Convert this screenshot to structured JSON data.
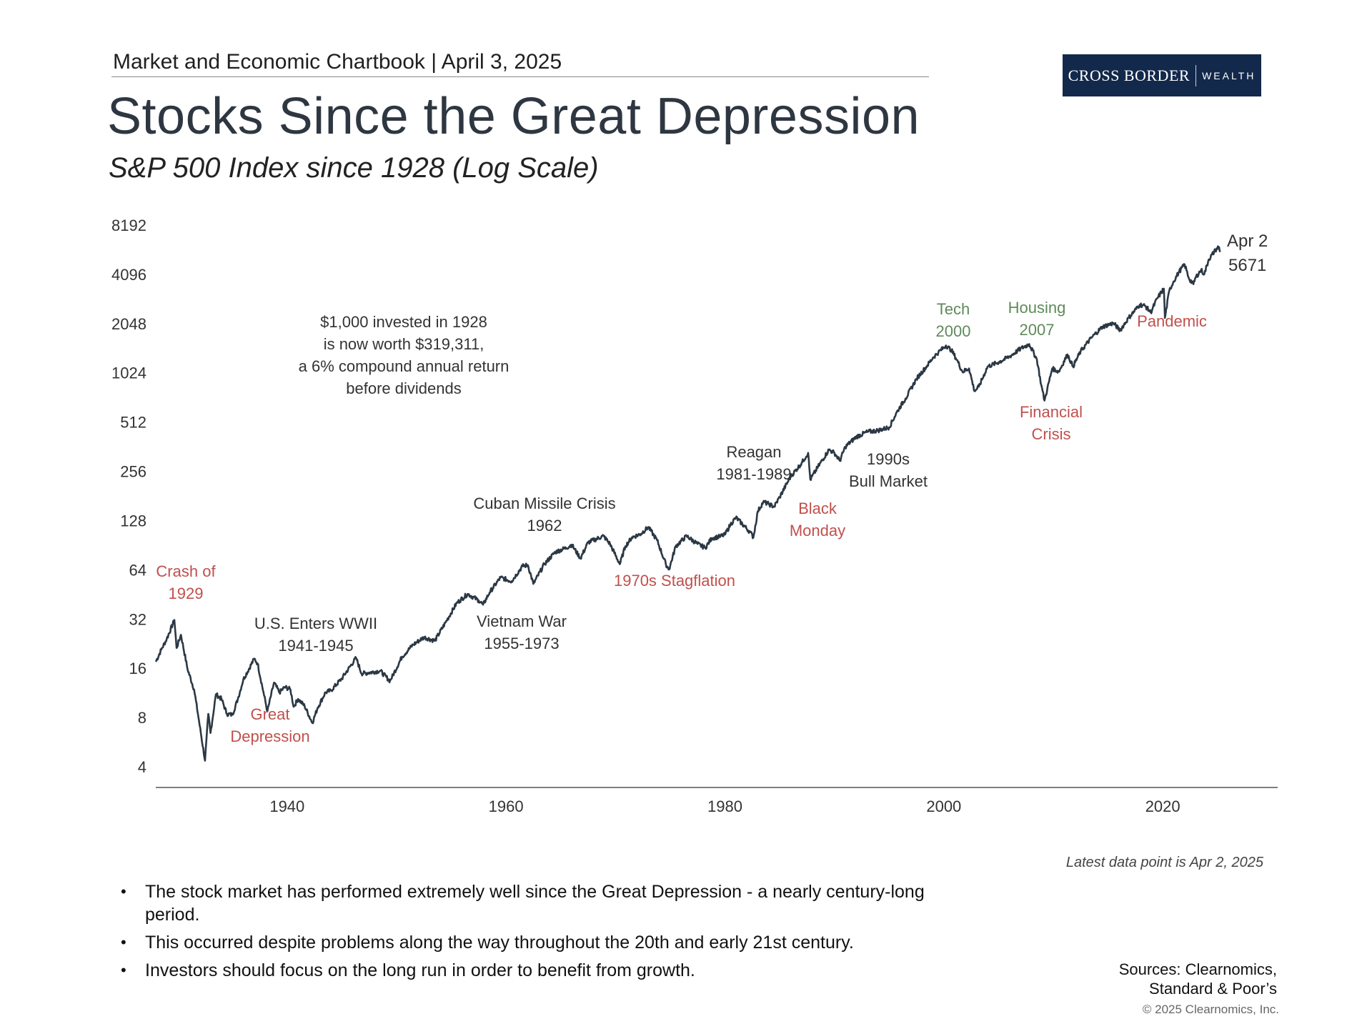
{
  "header": {
    "chartbook": "Market and Economic Chartbook | April 3, 2025",
    "title": "Stocks Since the Great Depression",
    "subtitle": "S&P 500 Index since 1928 (Log Scale)"
  },
  "logo": {
    "primary": "CROSS BORDER",
    "secondary": "WEALTH",
    "bg_color": "#13294b"
  },
  "colors": {
    "line": "#2b3844",
    "red_annotation": "#c0504d",
    "green_annotation": "#5e8a5a",
    "dark_annotation": "#333333"
  },
  "chart_data": {
    "type": "line",
    "title": "S&P 500 Index since 1928 (Log Scale)",
    "xlabel": "",
    "ylabel": "",
    "y_scale": "log2",
    "ylim": [
      4,
      8192
    ],
    "xlim": [
      1928,
      2030.5
    ],
    "y_ticks": [
      4,
      8,
      16,
      32,
      64,
      128,
      256,
      512,
      1024,
      2048,
      4096,
      8192
    ],
    "x_ticks": [
      1940,
      1960,
      1980,
      2000,
      2020
    ],
    "grid": false,
    "series": [
      {
        "name": "S&P 500",
        "points": [
          [
            1928.0,
            17.7
          ],
          [
            1928.5,
            21
          ],
          [
            1929.0,
            24.4
          ],
          [
            1929.7,
            31.9
          ],
          [
            1929.9,
            21.5
          ],
          [
            1930.3,
            25.9
          ],
          [
            1930.9,
            16
          ],
          [
            1931.5,
            12
          ],
          [
            1931.9,
            8.1
          ],
          [
            1932.5,
            4.4
          ],
          [
            1932.8,
            8.5
          ],
          [
            1933.0,
            6.5
          ],
          [
            1933.5,
            11.2
          ],
          [
            1934.0,
            10.5
          ],
          [
            1934.5,
            8.5
          ],
          [
            1935.0,
            8.4
          ],
          [
            1935.5,
            10.5
          ],
          [
            1936.0,
            13.8
          ],
          [
            1937.0,
            18.5
          ],
          [
            1937.3,
            17.3
          ],
          [
            1937.9,
            11
          ],
          [
            1938.2,
            8.8
          ],
          [
            1938.8,
            13.2
          ],
          [
            1939.3,
            11.5
          ],
          [
            1939.8,
            12.4
          ],
          [
            1940.3,
            12
          ],
          [
            1940.6,
            9.4
          ],
          [
            1941.0,
            10.5
          ],
          [
            1941.6,
            9.5
          ],
          [
            1942.3,
            7.5
          ],
          [
            1942.8,
            9.3
          ],
          [
            1943.5,
            11.5
          ],
          [
            1944.0,
            11.8
          ],
          [
            1945.0,
            14
          ],
          [
            1946.3,
            18.7
          ],
          [
            1946.8,
            15
          ],
          [
            1947.5,
            15.2
          ],
          [
            1948.5,
            15.6
          ],
          [
            1949.4,
            13.5
          ],
          [
            1950.5,
            19
          ],
          [
            1951.5,
            22.5
          ],
          [
            1952.5,
            25
          ],
          [
            1953.5,
            23.8
          ],
          [
            1954.5,
            31
          ],
          [
            1955.5,
            40.5
          ],
          [
            1956.5,
            46
          ],
          [
            1957.5,
            42
          ],
          [
            1957.9,
            39.5
          ],
          [
            1958.5,
            47
          ],
          [
            1959.5,
            58
          ],
          [
            1960.5,
            55
          ],
          [
            1961.5,
            68
          ],
          [
            1962.0,
            69
          ],
          [
            1962.5,
            53
          ],
          [
            1963.5,
            70
          ],
          [
            1964.5,
            83
          ],
          [
            1965.5,
            88
          ],
          [
            1966.0,
            92
          ],
          [
            1966.8,
            76
          ],
          [
            1967.5,
            95
          ],
          [
            1968.9,
            104
          ],
          [
            1969.5,
            93
          ],
          [
            1970.4,
            70
          ],
          [
            1970.9,
            90
          ],
          [
            1971.5,
            102
          ],
          [
            1972.3,
            107
          ],
          [
            1973.0,
            118
          ],
          [
            1973.8,
            98
          ],
          [
            1974.6,
            70
          ],
          [
            1974.9,
            65
          ],
          [
            1975.5,
            90
          ],
          [
            1976.5,
            104
          ],
          [
            1977.5,
            93
          ],
          [
            1978.2,
            88
          ],
          [
            1978.8,
            101
          ],
          [
            1979.5,
            103
          ],
          [
            1980.0,
            106
          ],
          [
            1980.5,
            122
          ],
          [
            1981.0,
            135
          ],
          [
            1982.3,
            110
          ],
          [
            1982.6,
            102
          ],
          [
            1983.0,
            147
          ],
          [
            1983.5,
            168
          ],
          [
            1984.0,
            163
          ],
          [
            1984.5,
            157
          ],
          [
            1985.0,
            180
          ],
          [
            1986.0,
            240
          ],
          [
            1987.0,
            290
          ],
          [
            1987.6,
            335
          ],
          [
            1987.8,
            230
          ],
          [
            1988.5,
            275
          ],
          [
            1989.5,
            350
          ],
          [
            1990.0,
            335
          ],
          [
            1990.5,
            300
          ],
          [
            1991.0,
            365
          ],
          [
            1992.0,
            420
          ],
          [
            1993.0,
            450
          ],
          [
            1994.0,
            460
          ],
          [
            1995.0,
            480
          ],
          [
            1995.8,
            610
          ],
          [
            1996.5,
            720
          ],
          [
            1997.5,
            950
          ],
          [
            1998.5,
            1150
          ],
          [
            1999.0,
            1280
          ],
          [
            1999.5,
            1380
          ],
          [
            2000.2,
            1520
          ],
          [
            2000.7,
            1420
          ],
          [
            2001.2,
            1240
          ],
          [
            2001.7,
            1050
          ],
          [
            2002.3,
            1100
          ],
          [
            2002.8,
            800
          ],
          [
            2003.2,
            850
          ],
          [
            2004.0,
            1130
          ],
          [
            2005.0,
            1200
          ],
          [
            2006.0,
            1300
          ],
          [
            2007.0,
            1450
          ],
          [
            2007.8,
            1550
          ],
          [
            2008.5,
            1250
          ],
          [
            2008.9,
            870
          ],
          [
            2009.2,
            700
          ],
          [
            2009.9,
            1100
          ],
          [
            2010.5,
            1050
          ],
          [
            2011.3,
            1340
          ],
          [
            2011.8,
            1130
          ],
          [
            2012.5,
            1400
          ],
          [
            2013.5,
            1700
          ],
          [
            2014.5,
            1980
          ],
          [
            2015.5,
            2080
          ],
          [
            2016.1,
            1880
          ],
          [
            2016.9,
            2250
          ],
          [
            2017.9,
            2700
          ],
          [
            2018.4,
            2650
          ],
          [
            2018.9,
            2420
          ],
          [
            2019.5,
            2950
          ],
          [
            2020.1,
            3380
          ],
          [
            2020.2,
            2240
          ],
          [
            2020.6,
            3300
          ],
          [
            2021.0,
            3750
          ],
          [
            2021.5,
            4300
          ],
          [
            2022.0,
            4750
          ],
          [
            2022.4,
            3900
          ],
          [
            2022.8,
            3600
          ],
          [
            2023.0,
            3950
          ],
          [
            2023.5,
            4400
          ],
          [
            2023.8,
            4150
          ],
          [
            2024.2,
            5100
          ],
          [
            2024.8,
            5800
          ],
          [
            2025.1,
            6100
          ],
          [
            2025.25,
            5671
          ]
        ]
      }
    ],
    "end_label": {
      "date": "Apr 2",
      "value": "5671"
    },
    "annotations": [
      {
        "id": "crash-1929",
        "lines": [
          "Crash of",
          "1929"
        ],
        "color": "red"
      },
      {
        "id": "great-depression",
        "lines": [
          "Great",
          "Depression"
        ],
        "color": "red"
      },
      {
        "id": "wwii",
        "lines": [
          "U.S. Enters WWII",
          "1941-1945"
        ],
        "color": "dark"
      },
      {
        "id": "invested",
        "lines": [
          "$1,000 invested in 1928",
          "is now worth $319,311,",
          "a 6% compound annual return",
          "before dividends"
        ],
        "color": "dark"
      },
      {
        "id": "cuban",
        "lines": [
          "Cuban Missile Crisis",
          "1962"
        ],
        "color": "dark"
      },
      {
        "id": "vietnam",
        "lines": [
          "Vietnam War",
          "1955-1973"
        ],
        "color": "dark"
      },
      {
        "id": "stagflation",
        "lines": [
          "1970s Stagflation"
        ],
        "color": "red"
      },
      {
        "id": "reagan",
        "lines": [
          "Reagan",
          "1981-1989"
        ],
        "color": "dark"
      },
      {
        "id": "black-monday",
        "lines": [
          "Black",
          "Monday"
        ],
        "color": "red"
      },
      {
        "id": "bull-market",
        "lines": [
          "1990s",
          "Bull Market"
        ],
        "color": "dark"
      },
      {
        "id": "tech-2000",
        "lines": [
          "Tech",
          "2000"
        ],
        "color": "green"
      },
      {
        "id": "housing-2007",
        "lines": [
          "Housing",
          "2007"
        ],
        "color": "green"
      },
      {
        "id": "financial-crisis",
        "lines": [
          "Financial",
          "Crisis"
        ],
        "color": "red"
      },
      {
        "id": "pandemic",
        "lines": [
          "Pandemic"
        ],
        "color": "red"
      }
    ]
  },
  "notes": {
    "latest": "Latest data point is Apr 2, 2025",
    "bullets": [
      "The stock market has performed extremely well since the Great Depression - a nearly century-long period.",
      "This occurred despite problems along the way throughout the 20th and early 21st century.",
      "Investors should focus on the long run in order to benefit from growth."
    ],
    "sources_line1": "Sources: Clearnomics,",
    "sources_line2": "Standard & Poor’s",
    "copyright": "© 2025 Clearnomics, Inc."
  }
}
